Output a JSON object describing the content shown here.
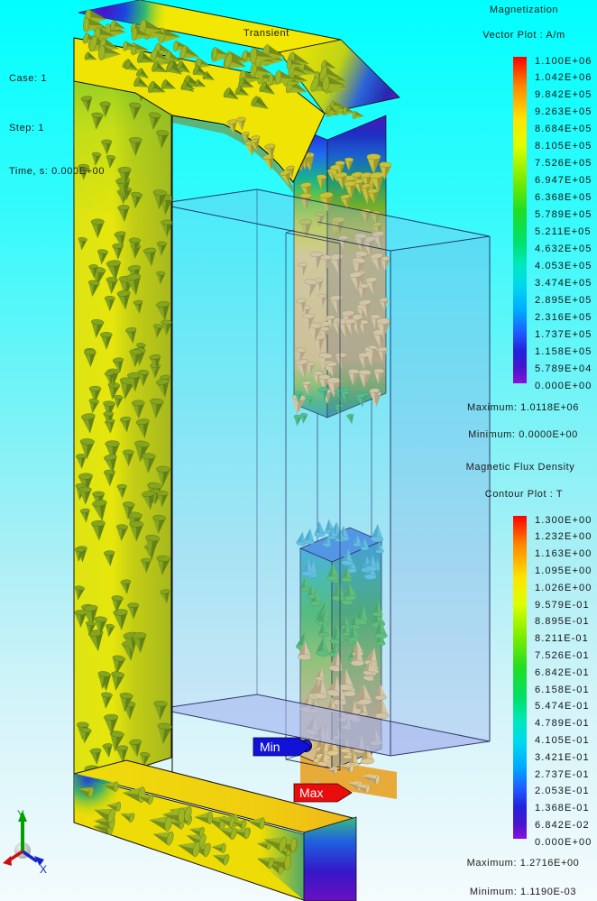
{
  "header": {
    "mode_label": "Transient"
  },
  "status": {
    "case": "Case: 1",
    "step": "Step: 1",
    "time": "Time, s: 0.000E+00"
  },
  "legend_magnetization": {
    "title_line1": "Magnetization",
    "title_line2": "Vector Plot : A/m",
    "tick_labels": [
      "1.100E+06",
      "1.042E+06",
      "9.842E+05",
      "9.263E+05",
      "8.684E+05",
      "8.105E+05",
      "7.526E+05",
      "6.947E+05",
      "6.368E+05",
      "5.789E+05",
      "5.211E+05",
      "4.632E+05",
      "4.053E+05",
      "3.474E+05",
      "2.895E+05",
      "2.316E+05",
      "1.737E+05",
      "1.158E+05",
      "5.789E+04",
      "0.000E+00"
    ],
    "maximum": "Maximum: 1.0118E+06",
    "minimum": "Minimum: 0.0000E+00"
  },
  "legend_flux": {
    "title_line1": "Magnetic Flux Density",
    "title_line2": "Contour Plot : T",
    "tick_labels": [
      "1.300E+00",
      "1.232E+00",
      "1.163E+00",
      "1.095E+00",
      "1.026E+00",
      "9.579E-01",
      "8.895E-01",
      "8.211E-01",
      "7.526E-01",
      "6.842E-01",
      "6.158E-01",
      "5.474E-01",
      "4.789E-01",
      "4.105E-01",
      "3.421E-01",
      "2.737E-01",
      "2.053E-01",
      "1.368E-01",
      "6.842E-02",
      "0.000E+00"
    ],
    "maximum": "Maximum: 1.2716E+00",
    "minimum": "Minimum: 1.1190E-03"
  },
  "annotations": {
    "min_label": "Min",
    "max_label": "Max"
  },
  "axes_triad": {
    "x_label": "X",
    "y_label": "Y",
    "x_color": "#1326c8",
    "y_color": "#00a000",
    "z_color": "#cc1010"
  },
  "colors": {
    "background_top": "#00FFFF",
    "background_bottom": "#F4FBFD",
    "min_flag": "#1212D6",
    "max_flag": "#E80C0C",
    "colormap_stops": [
      "#FF0000 0%",
      "#FF8800 9%",
      "#FFE400 19%",
      "#DFFF00 27%",
      "#7FEE00 37%",
      "#22DD22 47%",
      "#00E070 57%",
      "#00E8C0 64%",
      "#00D8F0 70%",
      "#00A8FF 78%",
      "#2255FF 85%",
      "#2222DD 90%",
      "#4416CC 95%",
      "#8811DD 100%"
    ]
  },
  "chart_data": [
    {
      "type": "heatmap",
      "title": "Magnetization Vector Plot : A/m",
      "legend_position": "right",
      "colormap": "rainbow",
      "scale_values": [
        1100000,
        1042000,
        984200,
        926300,
        868400,
        810500,
        752600,
        694700,
        636800,
        578900,
        521100,
        463200,
        405300,
        347400,
        289500,
        231600,
        173700,
        115800,
        57890,
        0
      ],
      "maximum": 1011800,
      "minimum": 0
    },
    {
      "type": "heatmap",
      "title": "Magnetic Flux Density Contour Plot : T",
      "legend_position": "right",
      "colormap": "rainbow",
      "scale_values": [
        1.3,
        1.232,
        1.163,
        1.095,
        1.026,
        0.9579,
        0.8895,
        0.8211,
        0.7526,
        0.6842,
        0.6158,
        0.5474,
        0.4789,
        0.4105,
        0.3421,
        0.2737,
        0.2053,
        0.1368,
        0.06842,
        0
      ],
      "maximum": 1.2716,
      "minimum": 0.001119
    }
  ]
}
